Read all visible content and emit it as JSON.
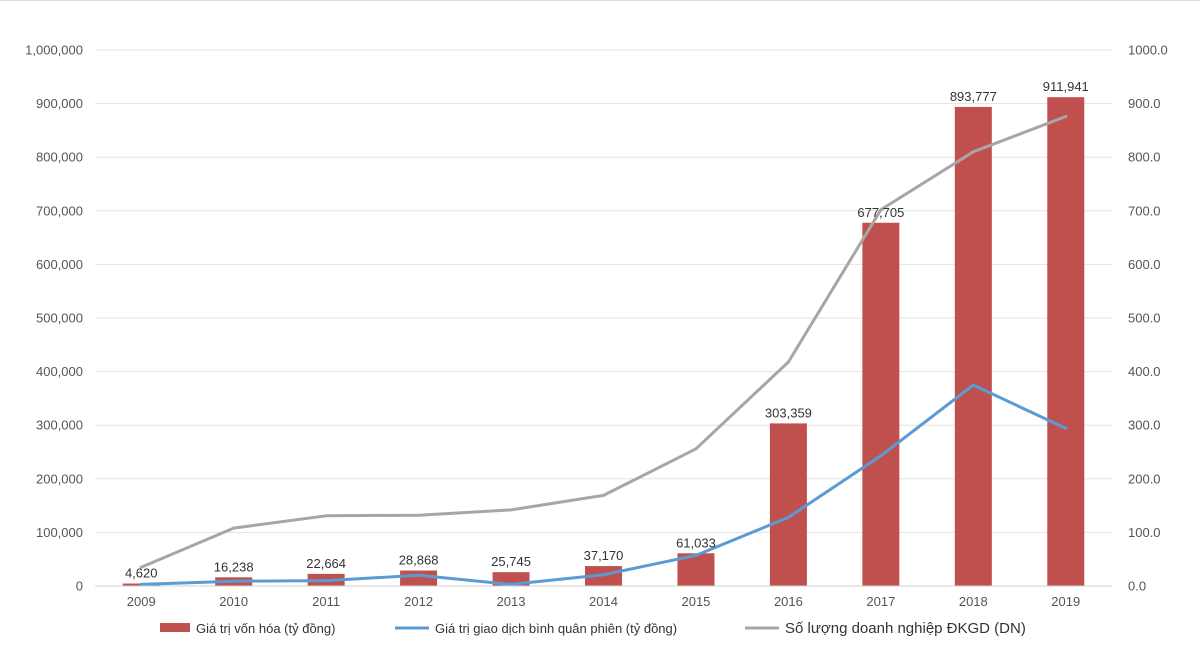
{
  "chart_data": {
    "type": "bar",
    "categories": [
      "2009",
      "2010",
      "2011",
      "2012",
      "2013",
      "2014",
      "2015",
      "2016",
      "2017",
      "2018",
      "2019"
    ],
    "series": [
      {
        "name": "Giá trị vốn hóa (tỷ đồng)",
        "kind": "bar",
        "axis": "left",
        "color": "#c0504d",
        "values": [
          4620,
          16238,
          22664,
          28868,
          25745,
          37170,
          61033,
          303359,
          677705,
          893777,
          911941
        ],
        "labels": [
          "4,620",
          "16,238",
          "22,664",
          "28,868",
          "25,745",
          "37,170",
          "61,033",
          "303,359",
          "677,705",
          "893,777",
          "911,941"
        ]
      },
      {
        "name": "Giá trị giao dịch bình quân phiên (tỷ đồng)",
        "kind": "line",
        "axis": "right",
        "color": "#5b9bd5",
        "values": [
          3,
          9,
          10,
          20,
          3,
          21,
          57,
          128,
          243,
          375,
          294
        ]
      },
      {
        "name": "Số lượng doanh nghiệp ĐKGD (DN)",
        "kind": "line",
        "axis": "right",
        "color": "#a6a6a6",
        "values": [
          35,
          108,
          131,
          132,
          142,
          169,
          256,
          418,
          702,
          810,
          876
        ]
      }
    ],
    "y_left": {
      "range": [
        0,
        1000000
      ],
      "ticks": [
        "0",
        "100,000",
        "200,000",
        "300,000",
        "400,000",
        "500,000",
        "600,000",
        "700,000",
        "800,000",
        "900,000",
        "1,000,000"
      ]
    },
    "y_right": {
      "range": [
        0,
        1000
      ],
      "ticks": [
        "0.0",
        "100.0",
        "200.0",
        "300.0",
        "400.0",
        "500.0",
        "600.0",
        "700.0",
        "800.0",
        "900.0",
        "1000.0"
      ]
    },
    "grid": true,
    "legend_position": "bottom"
  }
}
